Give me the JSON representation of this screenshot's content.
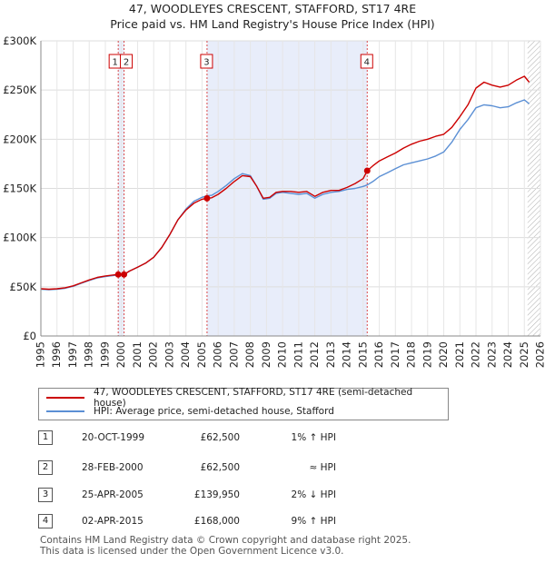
{
  "title_line1": "47, WOODLEYES CRESCENT, STAFFORD, ST17 4RE",
  "title_line2": "Price paid vs. HM Land Registry's House Price Index (HPI)",
  "chart_data": {
    "type": "line",
    "title": "47, WOODLEYES CRESCENT, STAFFORD, ST17 4RE — Price paid vs. HM Land Registry's House Price Index (HPI)",
    "xlim": [
      1995,
      2026
    ],
    "ylim": [
      0,
      300000
    ],
    "y_ticks": [
      0,
      50000,
      100000,
      150000,
      200000,
      250000,
      300000
    ],
    "y_tick_labels": [
      "£0",
      "£50K",
      "£100K",
      "£150K",
      "£200K",
      "£250K",
      "£300K"
    ],
    "x_ticks": [
      1995,
      1996,
      1997,
      1998,
      1999,
      2000,
      2001,
      2002,
      2003,
      2004,
      2005,
      2006,
      2007,
      2008,
      2009,
      2010,
      2011,
      2012,
      2013,
      2014,
      2015,
      2016,
      2017,
      2018,
      2019,
      2020,
      2021,
      2022,
      2023,
      2024,
      2025,
      2026
    ],
    "x_tick_labels": [
      "1995",
      "1996",
      "1997",
      "1998",
      "1999",
      "2000",
      "2001",
      "2002",
      "2003",
      "2004",
      "2005",
      "2006",
      "2007",
      "2008",
      "2009",
      "2010",
      "2011",
      "2012",
      "2013",
      "2014",
      "2015",
      "2016",
      "2017",
      "2018",
      "2019",
      "2020",
      "2021",
      "2022",
      "2023",
      "2024",
      "2025",
      "2026"
    ],
    "grid": true,
    "shaded_ranges": [
      [
        1999.8,
        2000.16
      ],
      [
        2005.31,
        2015.25
      ]
    ],
    "future_hatch_from": 2025.2,
    "series": [
      {
        "name": "47, WOODLEYES CRESCENT, STAFFORD, ST17 4RE (semi-detached house)",
        "color": "#cc0000",
        "x": [
          1995.0,
          1995.5,
          1996.0,
          1996.5,
          1997.0,
          1997.5,
          1998.0,
          1998.5,
          1999.0,
          1999.5,
          1999.8,
          2000.16,
          2000.5,
          2001.0,
          2001.5,
          2002.0,
          2002.5,
          2003.0,
          2003.5,
          2004.0,
          2004.5,
          2005.0,
          2005.31,
          2005.6,
          2006.0,
          2006.5,
          2007.0,
          2007.5,
          2008.0,
          2008.4,
          2008.8,
          2009.2,
          2009.6,
          2010.0,
          2010.5,
          2011.0,
          2011.5,
          2012.0,
          2012.5,
          2013.0,
          2013.5,
          2014.0,
          2014.5,
          2015.0,
          2015.25,
          2015.6,
          2016.0,
          2016.5,
          2017.0,
          2017.5,
          2018.0,
          2018.5,
          2019.0,
          2019.5,
          2020.0,
          2020.5,
          2021.0,
          2021.5,
          2022.0,
          2022.5,
          2023.0,
          2023.5,
          2024.0,
          2024.5,
          2025.0,
          2025.3
        ],
        "values": [
          48000,
          47500,
          48000,
          49000,
          51000,
          54000,
          57000,
          59500,
          61000,
          62000,
          62500,
          62500,
          66000,
          70000,
          74000,
          80000,
          90000,
          103000,
          118000,
          128000,
          135000,
          139000,
          139950,
          140500,
          144000,
          150000,
          157000,
          163000,
          162000,
          152000,
          140000,
          141000,
          146000,
          147000,
          147000,
          146000,
          147000,
          142000,
          146000,
          148000,
          148000,
          151000,
          155000,
          160000,
          168000,
          173000,
          178000,
          182000,
          186000,
          191000,
          195000,
          198000,
          200000,
          203000,
          205000,
          212000,
          223000,
          235000,
          252000,
          258000,
          255000,
          253000,
          255000,
          260000,
          264000,
          258000
        ]
      },
      {
        "name": "HPI: Average price, semi-detached house, Stafford",
        "color": "#5b8fd4",
        "x": [
          1995.0,
          1995.5,
          1996.0,
          1996.5,
          1997.0,
          1997.5,
          1998.0,
          1998.5,
          1999.0,
          1999.5,
          1999.8,
          2000.16,
          2000.5,
          2001.0,
          2001.5,
          2002.0,
          2002.5,
          2003.0,
          2003.5,
          2004.0,
          2004.5,
          2005.0,
          2005.31,
          2005.6,
          2006.0,
          2006.5,
          2007.0,
          2007.5,
          2008.0,
          2008.4,
          2008.8,
          2009.2,
          2009.6,
          2010.0,
          2010.5,
          2011.0,
          2011.5,
          2012.0,
          2012.5,
          2013.0,
          2013.5,
          2014.0,
          2014.5,
          2015.0,
          2015.25,
          2015.6,
          2016.0,
          2016.5,
          2017.0,
          2017.5,
          2018.0,
          2018.5,
          2019.0,
          2019.5,
          2020.0,
          2020.5,
          2021.0,
          2021.5,
          2022.0,
          2022.5,
          2023.0,
          2023.5,
          2024.0,
          2024.5,
          2025.0,
          2025.3
        ],
        "values": [
          47500,
          47000,
          47500,
          48500,
          50500,
          53500,
          56500,
          59000,
          60500,
          61500,
          62000,
          62500,
          66000,
          70000,
          74000,
          80000,
          90000,
          103000,
          118000,
          129000,
          137000,
          141000,
          142500,
          143000,
          147000,
          153000,
          160000,
          165000,
          163000,
          152000,
          139000,
          140000,
          145000,
          146000,
          145000,
          144000,
          145000,
          140000,
          144000,
          146000,
          147000,
          149000,
          150000,
          152000,
          153500,
          157000,
          162000,
          166000,
          170000,
          174000,
          176000,
          178000,
          180000,
          183000,
          187000,
          197000,
          210000,
          220000,
          232000,
          235000,
          234000,
          232000,
          233000,
          237000,
          240000,
          236000
        ]
      }
    ],
    "sale_markers": [
      {
        "label": "1",
        "x": 1999.8,
        "value": 62500
      },
      {
        "label": "2",
        "x": 2000.16,
        "value": 62500
      },
      {
        "label": "3",
        "x": 2005.31,
        "value": 139950
      },
      {
        "label": "4",
        "x": 2015.25,
        "value": 168000
      }
    ]
  },
  "legend": {
    "property_label": "47, WOODLEYES CRESCENT, STAFFORD, ST17 4RE (semi-detached house)",
    "hpi_label": "HPI: Average price, semi-detached house, Stafford",
    "property_color": "#cc0000",
    "hpi_color": "#5b8fd4"
  },
  "sales": [
    {
      "num": "1",
      "date": "20-OCT-1999",
      "price": "£62,500",
      "hpi": "1% ↑ HPI"
    },
    {
      "num": "2",
      "date": "28-FEB-2000",
      "price": "£62,500",
      "hpi": "≈ HPI"
    },
    {
      "num": "3",
      "date": "25-APR-2005",
      "price": "£139,950",
      "hpi": "2% ↓ HPI"
    },
    {
      "num": "4",
      "date": "02-APR-2015",
      "price": "£168,000",
      "hpi": "9% ↑ HPI"
    }
  ],
  "footer_line1": "Contains HM Land Registry data © Crown copyright and database right 2025.",
  "footer_line2": "This data is licensed under the Open Government Licence v3.0."
}
